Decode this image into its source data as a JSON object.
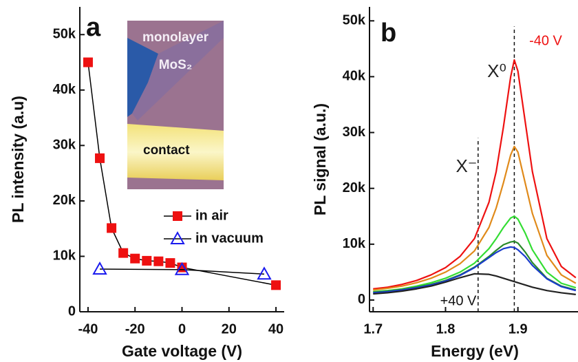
{
  "chart_data": [
    {
      "type": "line",
      "panel_label": "a",
      "xlabel": "Gate voltage (V)",
      "ylabel": "PL intensity (a.u)",
      "xlim": [
        -43.5,
        43.5
      ],
      "xticks": [
        -40,
        -20,
        0,
        20,
        40
      ],
      "ylim": [
        0,
        55000
      ],
      "yticks": [
        0,
        {
          "value": 10000,
          "label": "10k"
        },
        {
          "value": 20000,
          "label": "20k"
        },
        {
          "value": 30000,
          "label": "30k"
        },
        {
          "value": 40000,
          "label": "40k"
        },
        {
          "value": 50000,
          "label": "50k"
        }
      ],
      "line_color": "#000000",
      "legend": true,
      "inset": {
        "lines": [
          "monolayer",
          "MoS₂"
        ],
        "label": "contact"
      },
      "series": [
        {
          "name": "in air",
          "color": "#ee1111",
          "marker": "square",
          "x": [
            -40,
            -35,
            -30,
            -25,
            -20,
            -15,
            -10,
            -5,
            0,
            40
          ],
          "values": [
            45000,
            27700,
            15100,
            10600,
            9600,
            9200,
            9100,
            8800,
            8000,
            4800
          ]
        },
        {
          "name": "in vacuum",
          "color": "#1a1aee",
          "marker": "triangle",
          "x": [
            -35,
            0,
            35
          ],
          "values": [
            7700,
            7600,
            6800
          ]
        }
      ]
    },
    {
      "type": "line",
      "panel_label": "b",
      "xlabel": "Energy (eV)",
      "ylabel": "PL signal (a.u.)",
      "xlim": [
        1.695,
        1.983
      ],
      "xticks": [
        1.7,
        1.8,
        1.9
      ],
      "ylim": [
        -2100,
        52500
      ],
      "yticks": [
        0,
        {
          "value": 10000,
          "label": "10k"
        },
        {
          "value": 20000,
          "label": "20k"
        },
        {
          "value": 30000,
          "label": "30k"
        },
        {
          "value": 40000,
          "label": "40k"
        },
        {
          "value": 50000,
          "label": "50k"
        }
      ],
      "x": [
        1.7,
        1.72,
        1.74,
        1.76,
        1.78,
        1.8,
        1.82,
        1.84,
        1.86,
        1.87,
        1.88,
        1.89,
        1.895,
        1.9,
        1.91,
        1.92,
        1.94,
        1.96,
        1.98
      ],
      "vlines": [
        {
          "x": 1.845,
          "ymax": 29000
        },
        {
          "x": 1.895,
          "ymax": 49000
        }
      ],
      "annotations": [
        {
          "text": "-40 V",
          "color": "#ee1111"
        },
        {
          "text": "X⁰",
          "color": "#222222"
        },
        {
          "text": "X⁻",
          "color": "#222222"
        },
        {
          "text": "+40 V",
          "color": "#111111"
        }
      ],
      "series": [
        {
          "color": "#ee1111",
          "values": [
            2000,
            2300,
            2800,
            3500,
            4500,
            5800,
            7800,
            11000,
            17500,
            23000,
            31000,
            40000,
            43000,
            41000,
            32000,
            23000,
            11000,
            6000,
            4000
          ]
        },
        {
          "color": "#e08a1a",
          "values": [
            1800,
            2100,
            2500,
            3100,
            3900,
            5000,
            6500,
            8800,
            13000,
            16500,
            21000,
            26000,
            27500,
            26500,
            21000,
            15500,
            8000,
            4500,
            3000
          ]
        },
        {
          "color": "#33dd33",
          "values": [
            1500,
            1700,
            2000,
            2500,
            3100,
            3900,
            5000,
            6600,
            9200,
            11000,
            13000,
            14700,
            15000,
            14500,
            12000,
            9000,
            5000,
            3000,
            2200
          ]
        },
        {
          "color": "#2a8a2a",
          "values": [
            1400,
            1600,
            1900,
            2300,
            2800,
            3500,
            4500,
            5900,
            7800,
            8900,
            9900,
            10400,
            10500,
            10200,
            8600,
            6700,
            3900,
            2500,
            1800
          ]
        },
        {
          "color": "#1a3ccc",
          "values": [
            1300,
            1500,
            1800,
            2200,
            2700,
            3400,
            4400,
            5800,
            7600,
            8500,
            9200,
            9500,
            9400,
            9000,
            7800,
            6200,
            3800,
            2400,
            1700
          ]
        },
        {
          "color": "#222222",
          "values": [
            1100,
            1300,
            1600,
            2000,
            2500,
            3200,
            4000,
            4700,
            4600,
            4300,
            3900,
            3500,
            3300,
            3100,
            2700,
            2300,
            1700,
            1300,
            1000
          ]
        }
      ]
    }
  ]
}
